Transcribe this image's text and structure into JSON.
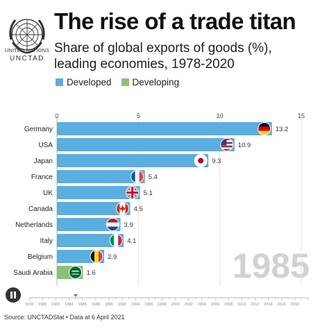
{
  "header": {
    "title": "The rise of a trade titan",
    "subtitle": "Share of global exports of goods (%), leading economies, 1978-2020"
  },
  "logo": {
    "line1": "UNITED NATIONS",
    "line2": "UNCTAD"
  },
  "legend": [
    {
      "label": "Developed",
      "color": "#5aaee0"
    },
    {
      "label": "Developing",
      "color": "#8cc07a"
    }
  ],
  "chart_data": {
    "type": "bar",
    "orientation": "horizontal",
    "year_label": "1985",
    "xlim": [
      0,
      15
    ],
    "xticks": [
      "0",
      "5",
      "10",
      "15"
    ],
    "categories": [
      "Germany",
      "USA",
      "Japan",
      "France",
      "UK",
      "Canada",
      "Netherlands",
      "Italy",
      "Belgium",
      "Saudi Arabia"
    ],
    "values": [
      13.2,
      10.9,
      9.3,
      5.4,
      5.1,
      4.5,
      3.9,
      4.1,
      2.9,
      1.6
    ],
    "value_labels": [
      "13.2",
      "10.9",
      "9.3",
      "5.4",
      "5.1",
      "4.5",
      "3.9",
      "4.1",
      "2.9",
      "1.6"
    ],
    "groups": [
      "Developed",
      "Developed",
      "Developed",
      "Developed",
      "Developed",
      "Developed",
      "Developed",
      "Developed",
      "Developed",
      "Developing"
    ],
    "flags": [
      "germany-flag",
      "usa-flag",
      "japan-flag",
      "france-flag",
      "uk-flag",
      "canada-flag",
      "netherlands-flag",
      "italy-flag",
      "belgium-flag",
      "saudi-arabia-flag"
    ],
    "grid": true,
    "timeline": {
      "years": [
        "1978",
        "1980",
        "1982",
        "1984",
        "1986",
        "1988",
        "1990",
        "1992",
        "1994",
        "1996",
        "1998",
        "2000",
        "2002",
        "2004",
        "2006",
        "2008",
        "2010",
        "2012",
        "2014",
        "2016",
        "2018"
      ],
      "first_year": 1978,
      "last_year": 2020,
      "current_year": 1985
    }
  },
  "footer": {
    "source": "Source: UNCTADStat • Data at 6 April 2021"
  },
  "controls": {
    "play_icon": "pause-icon"
  }
}
